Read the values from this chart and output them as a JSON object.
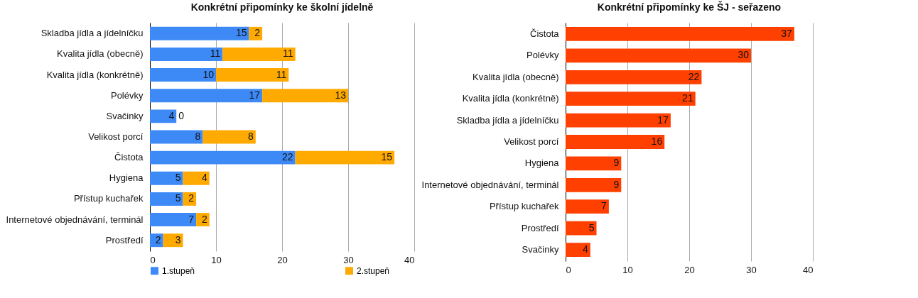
{
  "chart_data": [
    {
      "type": "bar",
      "orientation": "horizontal",
      "stacked": true,
      "title": "Konkrétní připomínky ke školní jídelně",
      "categories": [
        "Skladba jídla a jídelníčku",
        "Kvalita jídla (obecně)",
        "Kvalita jídla (konkrétně)",
        "Polévky",
        "Svačinky",
        "Velikost porcí",
        "Čistota",
        "Hygiena",
        "Přístup kuchařek",
        "Internetové objednávání, terminál",
        "Prostředí"
      ],
      "series": [
        {
          "name": "1.stupeň",
          "color": "#3d8af7",
          "values": [
            15,
            11,
            10,
            17,
            4,
            8,
            22,
            5,
            5,
            7,
            2
          ]
        },
        {
          "name": "2.stupeň",
          "color": "#ffaa00",
          "values": [
            2,
            11,
            11,
            13,
            0,
            8,
            15,
            4,
            2,
            2,
            3
          ]
        }
      ],
      "xlim": [
        0,
        40
      ],
      "xticks": [
        0,
        10,
        20,
        30,
        40
      ],
      "grid": "x",
      "legend": "bottom",
      "data_labels": true
    },
    {
      "type": "bar",
      "orientation": "horizontal",
      "title": "Konkrétní připomínky ke ŠJ - seřazeno",
      "categories": [
        "Čistota",
        "Polévky",
        "Kvalita jídla (obecně)",
        "Kvalita jídla (konkrétně)",
        "Skladba jídla a jídelníčku",
        "Velikost porcí",
        "Hygiena",
        "Internetové objednávání, terminál",
        "Přístup kuchařek",
        "Prostředí",
        "Svačinky"
      ],
      "values": [
        37,
        30,
        22,
        21,
        17,
        16,
        9,
        9,
        7,
        5,
        4
      ],
      "color": "#ff4000",
      "xlim": [
        0,
        40
      ],
      "xticks": [
        0,
        10,
        20,
        30,
        40
      ],
      "grid": "x",
      "data_labels": true
    }
  ]
}
